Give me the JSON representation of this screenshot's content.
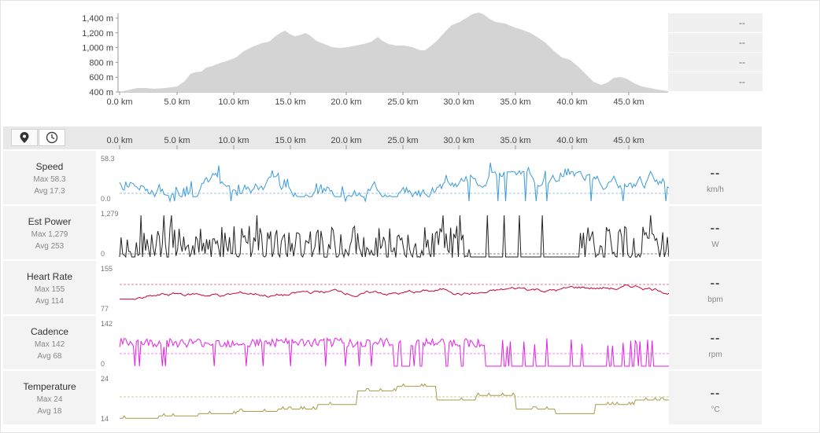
{
  "elevation": {
    "y_ticks": [
      "1,400 m",
      "1,200 m",
      "1,000 m",
      "800 m",
      "600 m",
      "400 m"
    ],
    "x_ticks": [
      "0.0 km",
      "5.0 km",
      "10.0 km",
      "15.0 km",
      "20.0 km",
      "25.0 km",
      "30.0 km",
      "35.0 km",
      "40.0 km",
      "45.0 km"
    ],
    "fill_color": "#d4d4d4"
  },
  "summary_stats": [
    "--",
    "--",
    "--",
    "--"
  ],
  "toolbar": {
    "pin_icon": "map-pin-icon",
    "clock_icon": "clock-icon",
    "x_ticks": [
      "0.0 km",
      "5.0 km",
      "10.0 km",
      "15.0 km",
      "20.0 km",
      "25.0 km",
      "30.0 km",
      "35.0 km",
      "40.0 km",
      "45.0 km"
    ]
  },
  "metrics": [
    {
      "name": "Speed",
      "max": "Max 58.3",
      "avg": "Avg 17.3",
      "scale_max": "58.3",
      "scale_min": "0.0",
      "value": "--",
      "unit": "km/h",
      "color": "#3a9ad9"
    },
    {
      "name": "Est Power",
      "max": "Max 1,279",
      "avg": "Avg 253",
      "scale_max": "1,279",
      "scale_min": "0",
      "value": "--",
      "unit": "W",
      "color": "#222222"
    },
    {
      "name": "Heart Rate",
      "max": "Max 155",
      "avg": "Avg 114",
      "scale_max": "155",
      "scale_min": "77",
      "value": "--",
      "unit": "bpm",
      "color": "#cc0033"
    },
    {
      "name": "Cadence",
      "max": "Max 142",
      "avg": "Avg 68",
      "scale_max": "142",
      "scale_min": "0",
      "value": "--",
      "unit": "rpm",
      "color": "#e81ee8"
    },
    {
      "name": "Temperature",
      "max": "Max 24",
      "avg": "Avg 18",
      "scale_max": "24",
      "scale_min": "14",
      "value": "--",
      "unit": "°C",
      "color": "#a89a4a"
    }
  ]
}
